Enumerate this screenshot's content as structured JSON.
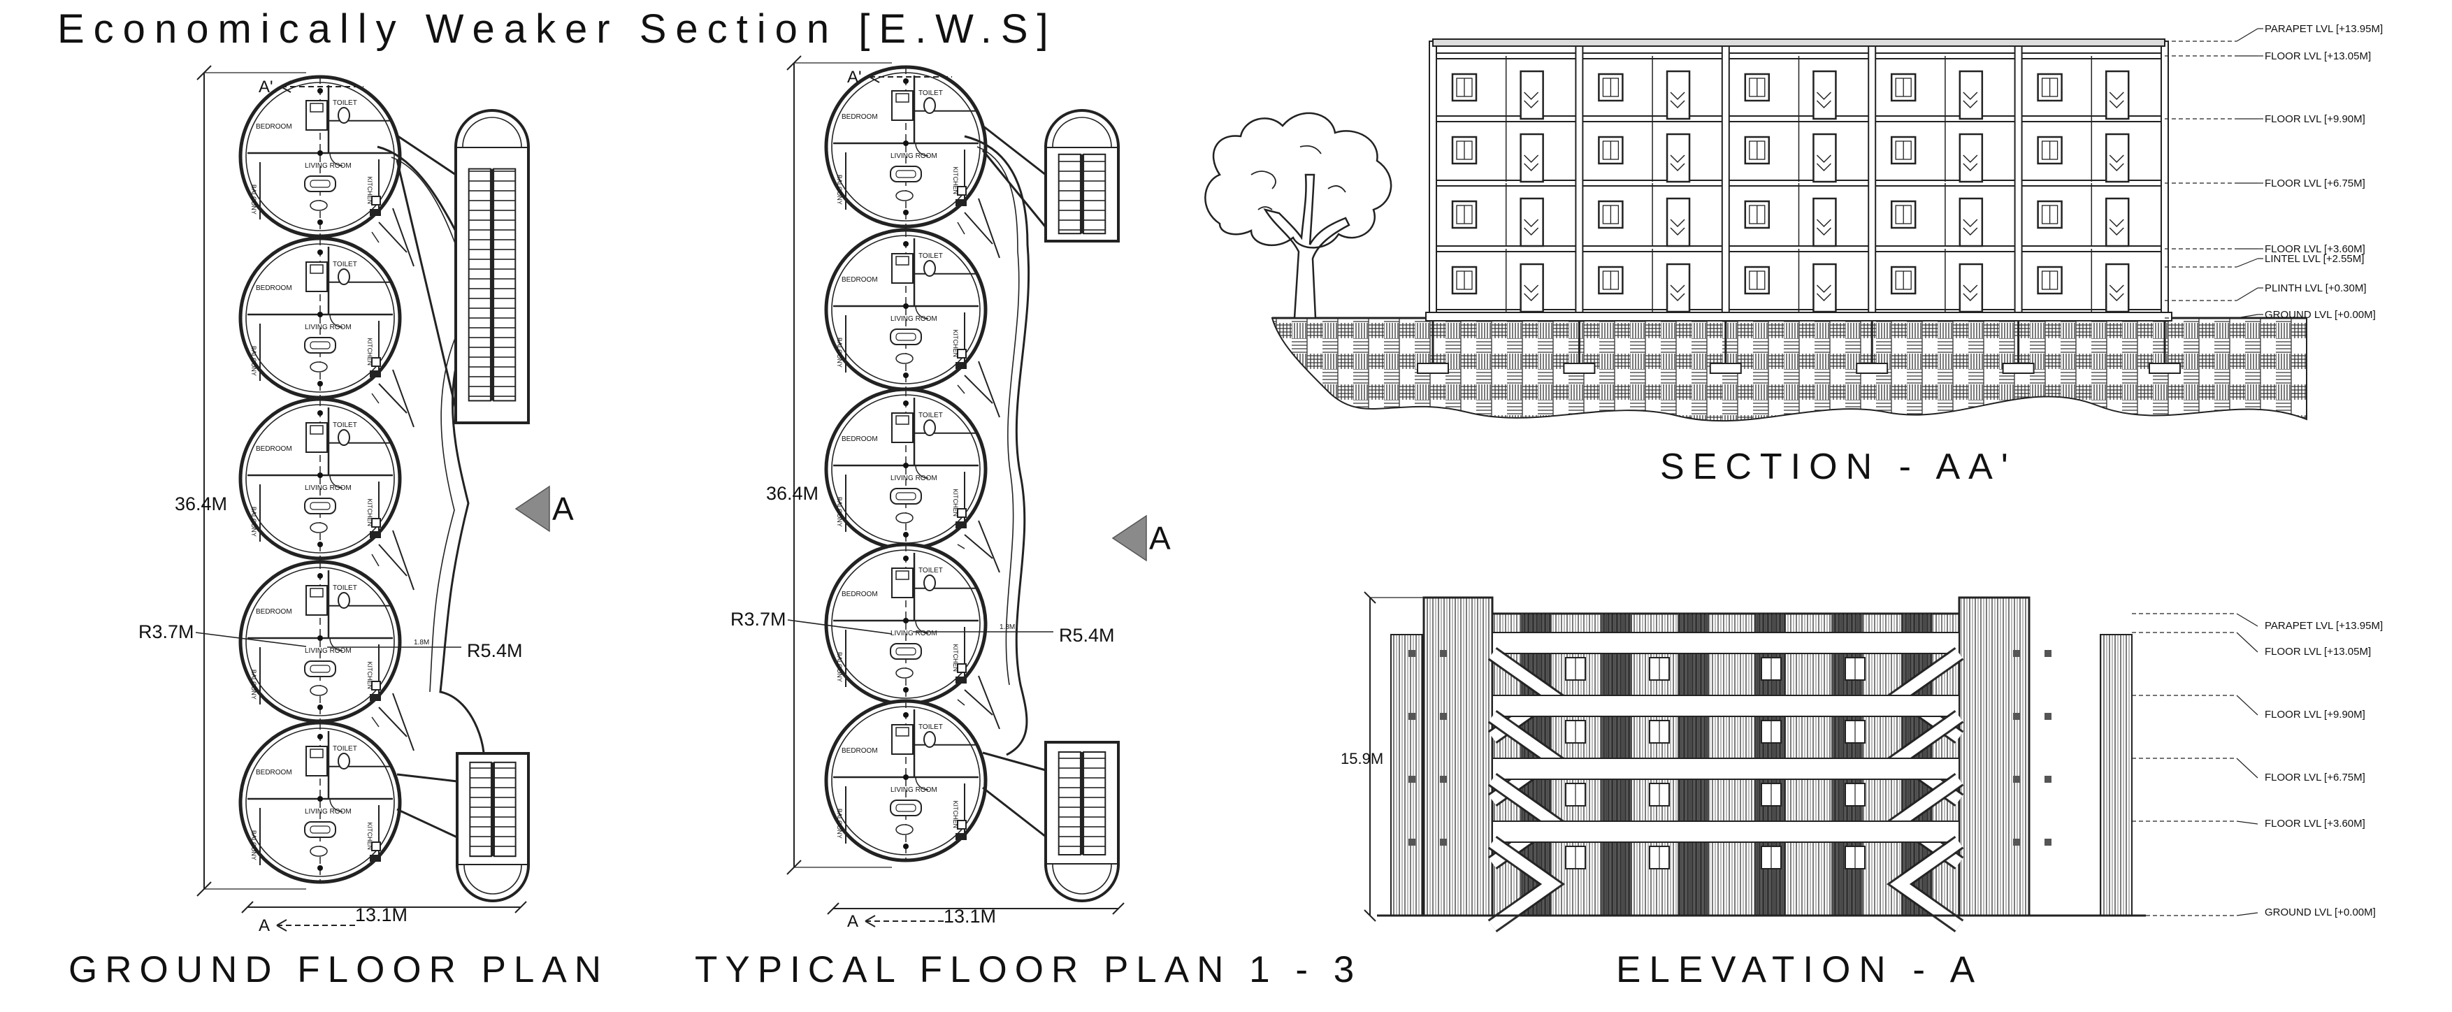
{
  "sheet": {
    "title": "Economically Weaker Section [E.W.S]",
    "marker_label": "A"
  },
  "ground_floor_plan": {
    "title": "GROUND FLOOR PLAN",
    "section_mark_top": "A'",
    "section_mark_bottom": "A",
    "length_dim": "36.4M",
    "width_dim": "13.1M",
    "radius_unit": "R3.7M",
    "radius_corridor": "R5.4M",
    "corridor_width": "1.8M",
    "units": 5
  },
  "typical_floor_plan": {
    "title": "TYPICAL FLOOR PLAN 1 - 3",
    "section_mark_top": "A'",
    "section_mark_bottom": "A",
    "length_dim": "36.4M",
    "width_dim": "13.1M",
    "radius_unit": "R3.7M",
    "radius_corridor": "R5.4M",
    "corridor_width": "1.8M",
    "units": 5
  },
  "room_labels": {
    "bedroom": "BEDROOM",
    "toilet": "TOILET",
    "living": "LIVING ROOM",
    "balcony": "BALCONY",
    "kitchen": "KITCHEN"
  },
  "section": {
    "title": "SECTION - AA'",
    "levels": [
      "PARAPET LVL [+13.95M]",
      "FLOOR LVL [+13.05M]",
      "FLOOR LVL [+9.90M]",
      "FLOOR LVL [+6.75M]",
      "FLOOR LVL [+3.60M]",
      "LINTEL LVL [+2.55M]",
      "PLINTH LVL [+0.30M]",
      "GROUND LVL [+0.00M]"
    ]
  },
  "elevation": {
    "title": "ELEVATION - A",
    "height_dim": "15.9M",
    "levels": [
      "PARAPET LVL [+13.95M]",
      "FLOOR LVL [+13.05M]",
      "FLOOR LVL [+9.90M]",
      "FLOOR LVL [+6.75M]",
      "FLOOR LVL [+3.60M]",
      "GROUND LVL [+0.00M]"
    ]
  }
}
